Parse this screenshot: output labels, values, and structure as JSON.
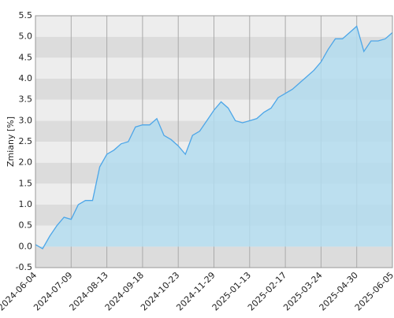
{
  "chart_data": {
    "type": "area",
    "y_label": "Zmiany [%]",
    "categories": [
      "2024-06-04",
      null,
      null,
      null,
      null,
      "2024-07-09",
      null,
      null,
      null,
      null,
      "2024-08-13",
      null,
      null,
      null,
      null,
      "2024-09-18",
      null,
      null,
      null,
      null,
      "2024-10-23",
      null,
      null,
      null,
      null,
      "2024-11-29",
      null,
      null,
      null,
      null,
      "2025-01-13",
      null,
      null,
      null,
      null,
      "2025-02-17",
      null,
      null,
      null,
      null,
      "2025-03-24",
      null,
      null,
      null,
      null,
      "2025-04-30",
      null,
      null,
      null,
      null,
      "2025-06-05"
    ],
    "values": [
      0.05,
      -0.05,
      0.25,
      0.5,
      0.7,
      0.65,
      1.0,
      1.1,
      1.1,
      1.9,
      2.2,
      2.3,
      2.45,
      2.5,
      2.85,
      2.9,
      2.9,
      3.05,
      2.65,
      2.55,
      2.4,
      2.2,
      2.65,
      2.75,
      3.0,
      3.25,
      3.45,
      3.3,
      3.0,
      2.95,
      3.0,
      3.05,
      3.2,
      3.3,
      3.55,
      3.65,
      3.75,
      3.9,
      4.05,
      4.2,
      4.4,
      4.7,
      4.95,
      4.95,
      5.1,
      5.25,
      4.65,
      4.9,
      4.9,
      4.95,
      5.1
    ],
    "color": "#4da6e8",
    "fill_color": "#b3dcef",
    "ylim": [
      -0.5,
      5.5
    ],
    "yticks": [
      -0.5,
      {
        "value": 0,
        "label": "0.0"
      },
      0.5,
      {
        "value": 1,
        "label": "1.0"
      },
      1.5,
      {
        "value": 2,
        "label": "2.0"
      },
      2.5,
      {
        "value": 3,
        "label": "3.0"
      },
      3.5,
      {
        "value": 4,
        "label": "4.0"
      },
      4.5,
      {
        "value": 5,
        "label": "5.0"
      },
      5.5
    ],
    "grid": true
  }
}
